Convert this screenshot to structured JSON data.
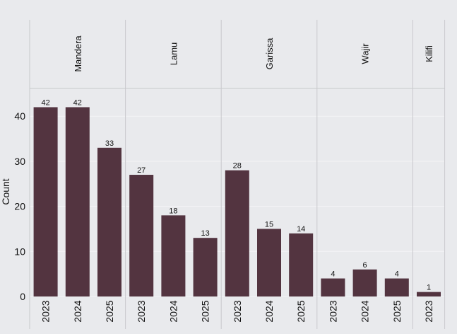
{
  "chart_data": {
    "type": "bar",
    "ylabel": "Count",
    "xlabel": "",
    "ylim": [
      0,
      46
    ],
    "yticks": [
      0,
      10,
      20,
      30,
      40
    ],
    "bar_color": "#533440",
    "background_color": "#e9eaed",
    "facets": [
      {
        "name": "Mandera",
        "categories": [
          "2023",
          "2024",
          "2025"
        ],
        "values": [
          42,
          42,
          33
        ]
      },
      {
        "name": "Lamu",
        "categories": [
          "2023",
          "2024",
          "2025"
        ],
        "values": [
          27,
          18,
          13
        ]
      },
      {
        "name": "Garissa",
        "categories": [
          "2023",
          "2024",
          "2025"
        ],
        "values": [
          28,
          15,
          14
        ]
      },
      {
        "name": "Wajir",
        "categories": [
          "2023",
          "2024",
          "2025"
        ],
        "values": [
          4,
          6,
          4
        ]
      },
      {
        "name": "Kilifi",
        "categories": [
          "2023"
        ],
        "values": [
          1
        ]
      }
    ]
  }
}
